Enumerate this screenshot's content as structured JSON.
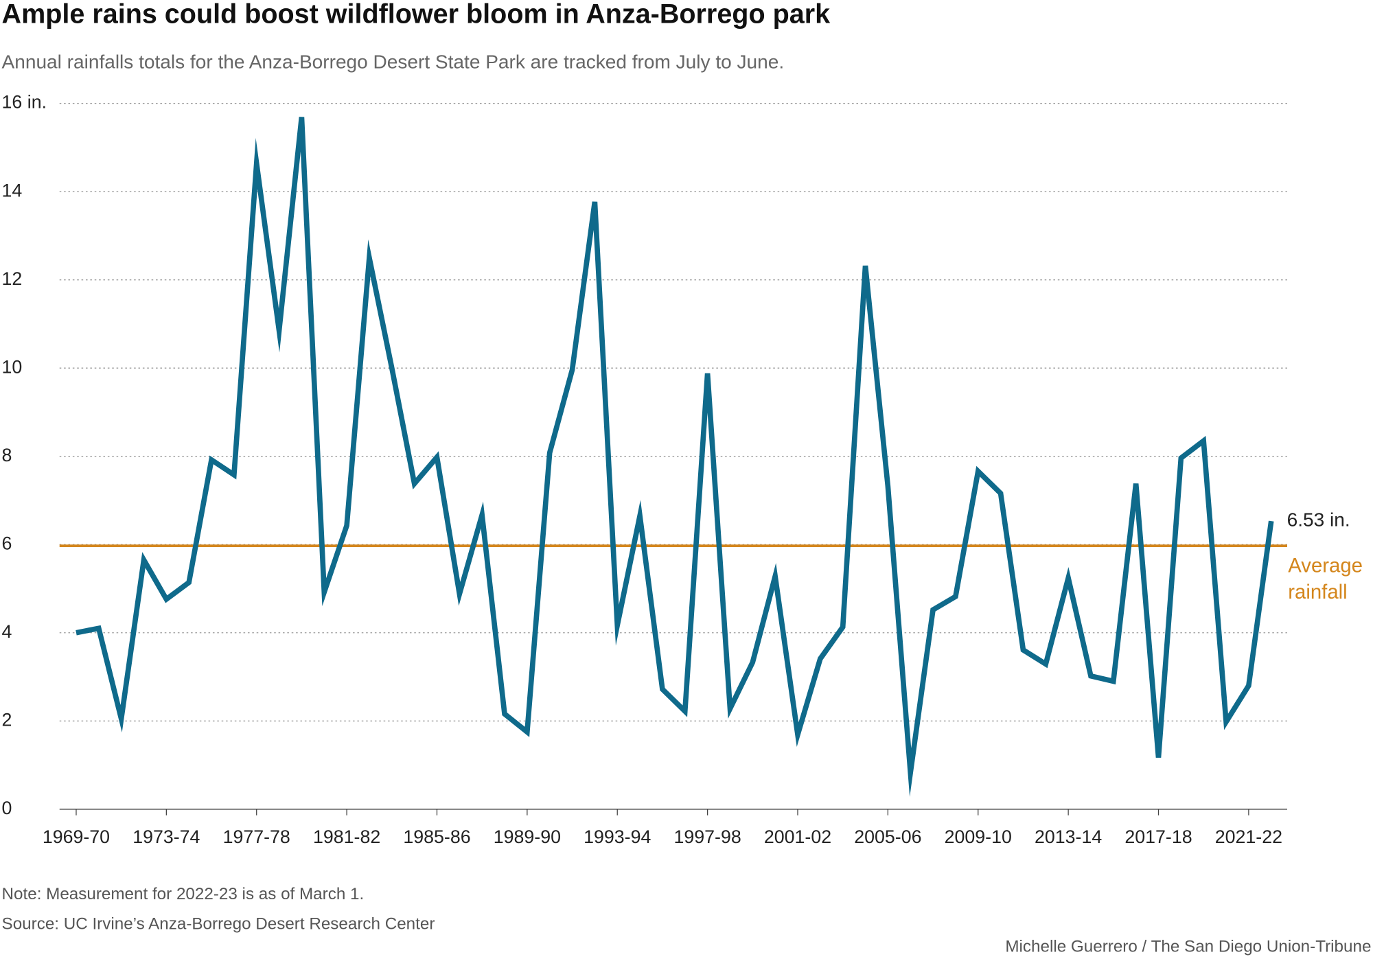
{
  "chart_data": {
    "type": "line",
    "title": "Ample rains could boost wildflower bloom in Anza-Borrego park",
    "subtitle": "Annual rainfalls totals for the Anza-Borrego Desert State Park are tracked from July to June.",
    "categories": [
      "1969-70",
      null,
      null,
      null,
      "1973-74",
      null,
      null,
      null,
      "1977-78",
      null,
      null,
      null,
      "1981-82",
      null,
      null,
      null,
      "1985-86",
      null,
      null,
      null,
      "1989-90",
      null,
      null,
      null,
      "1993-94",
      null,
      null,
      null,
      "1997-98",
      null,
      null,
      null,
      "2001-02",
      null,
      null,
      null,
      "2005-06",
      null,
      null,
      null,
      "2009-10",
      null,
      null,
      null,
      "2013-14",
      null,
      null,
      null,
      "2017-18",
      null,
      null,
      null,
      "2021-22",
      null
    ],
    "values": [
      4.0,
      4.1,
      2.05,
      5.65,
      4.76,
      5.14,
      7.92,
      7.58,
      14.64,
      10.85,
      15.69,
      4.92,
      6.43,
      12.5,
      10.0,
      7.38,
      7.98,
      4.88,
      6.67,
      2.16,
      1.75,
      8.08,
      9.96,
      13.77,
      4.17,
      6.65,
      2.72,
      2.22,
      9.88,
      2.28,
      3.33,
      5.28,
      1.69,
      3.41,
      4.13,
      12.32,
      7.32,
      0.83,
      4.52,
      4.82,
      7.66,
      7.16,
      3.61,
      3.29,
      5.24,
      3.02,
      2.9,
      7.38,
      1.17,
      7.96,
      8.35,
      1.98,
      2.8,
      6.53
    ],
    "value_labels": [
      null,
      null,
      null,
      null,
      null,
      null,
      null,
      null,
      null,
      null,
      null,
      null,
      null,
      null,
      null,
      null,
      null,
      null,
      null,
      null,
      null,
      null,
      null,
      null,
      null,
      null,
      null,
      null,
      null,
      null,
      null,
      null,
      null,
      null,
      null,
      null,
      null,
      null,
      null,
      null,
      null,
      null,
      null,
      null,
      null,
      null,
      null,
      null,
      null,
      null,
      null,
      null,
      null,
      "6.53 in."
    ],
    "color": "#0f6a8b",
    "average": {
      "value": 5.97,
      "label": [
        "Average",
        "rainfall"
      ],
      "color": "#d4861c"
    },
    "ylim": [
      0,
      16
    ],
    "yticks": [
      0,
      2,
      4,
      6,
      8,
      10,
      12,
      14,
      {
        "value": 16,
        "label": "16 in."
      }
    ],
    "grid": true,
    "note": "Note: Measurement for 2022-23 is as of March 1.",
    "source": "Source: UC Irvine’s Anza-Borrego Desert Research Center",
    "credit": "Michelle Guerrero / The San Diego Union-Tribune"
  }
}
